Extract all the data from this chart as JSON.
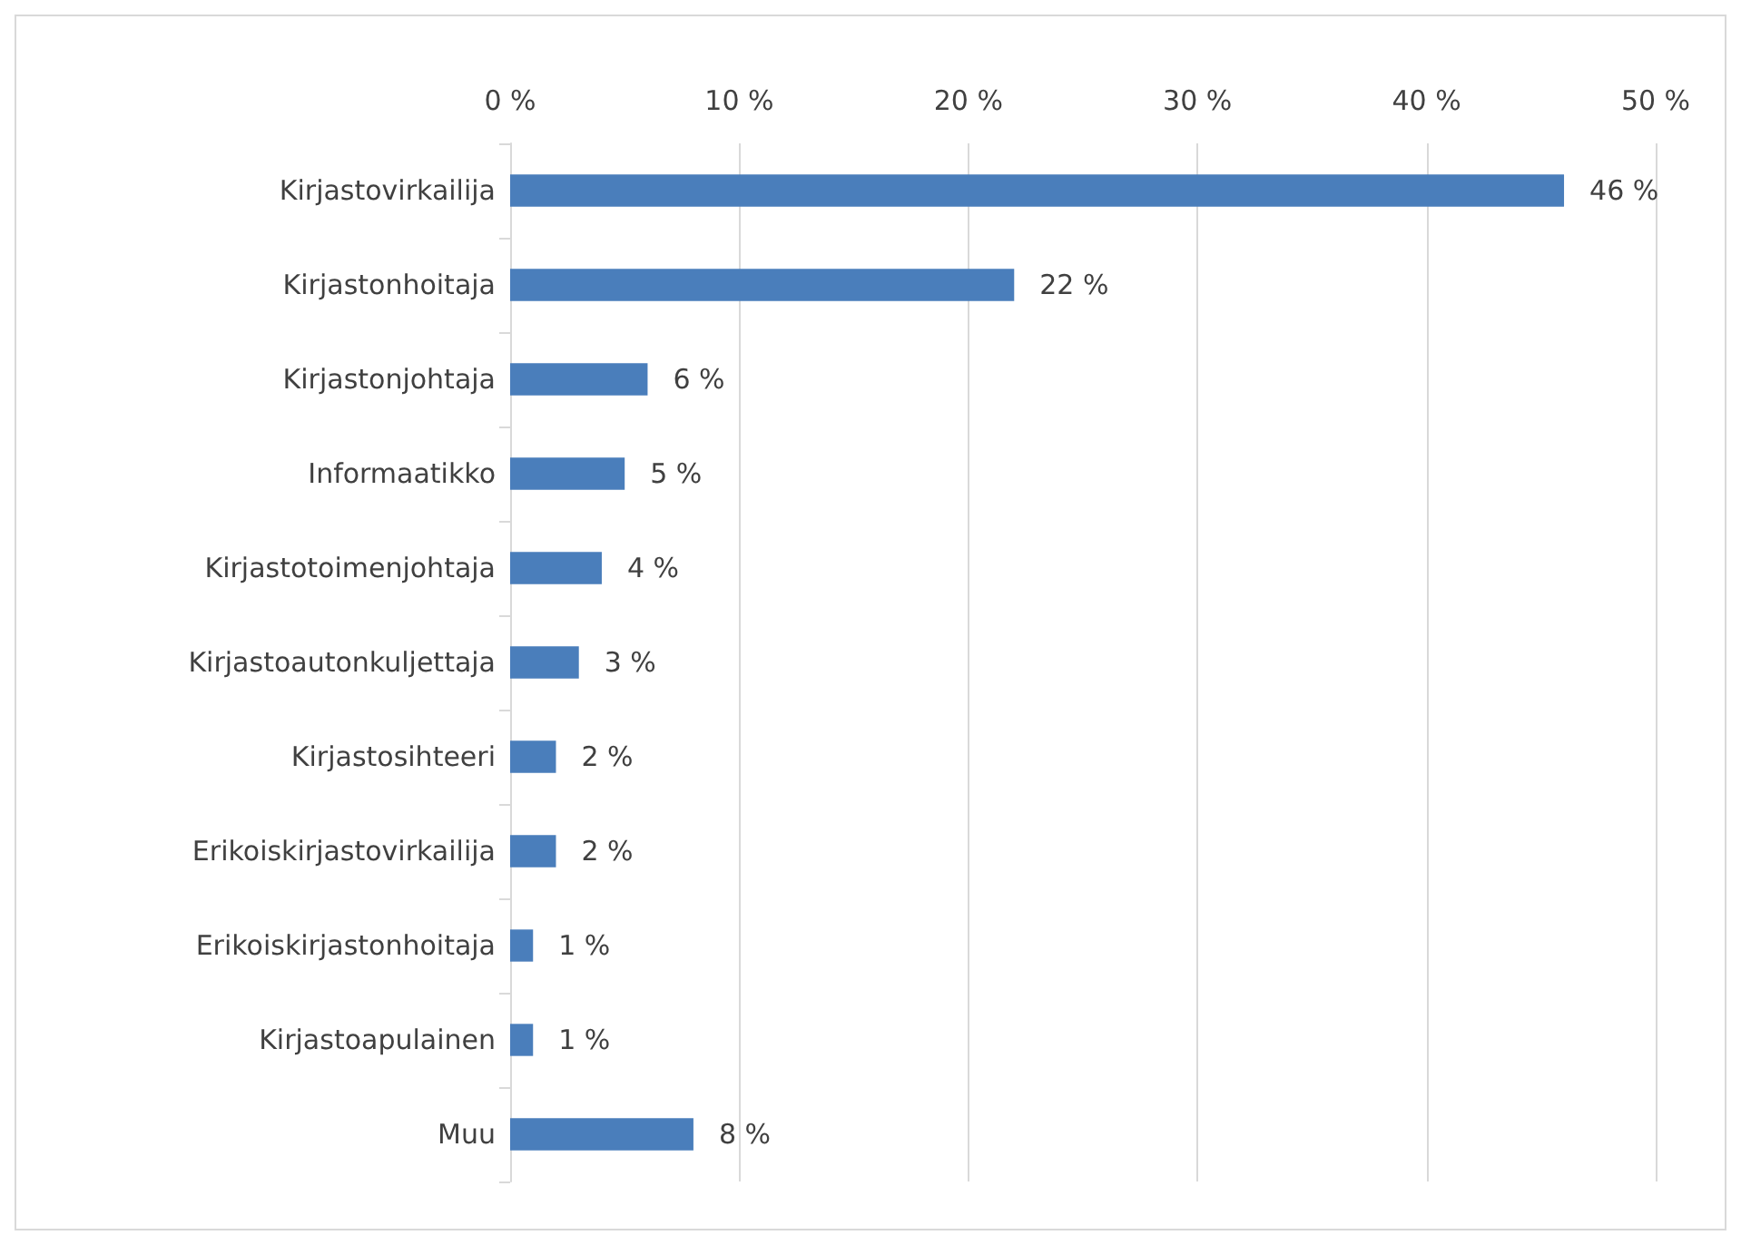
{
  "chart_data": {
    "type": "bar",
    "orientation": "horizontal",
    "categories": [
      "Kirjastovirkailija",
      "Kirjastonhoitaja",
      "Kirjastonjohtaja",
      "Informaatikko",
      "Kirjastotoimenjohtaja",
      "Kirjastoautonkuljettaja",
      "Kirjastosihteeri",
      "Erikoiskirjastovirkailija",
      "Erikoiskirjastonhoitaja",
      "Kirjastoapulainen",
      "Muu"
    ],
    "values": [
      46,
      22,
      6,
      5,
      4,
      3,
      2,
      2,
      1,
      1,
      8
    ],
    "value_labels": [
      "46 %",
      "22 %",
      "6 %",
      "5 %",
      "4 %",
      "3 %",
      "2 %",
      "2 %",
      "1 %",
      "1 %",
      "8 %"
    ],
    "color": "#4a7ebb",
    "xlim": [
      0,
      50
    ],
    "xticks": [
      {
        "value": 0,
        "label": "0 %"
      },
      {
        "value": 10,
        "label": "10 %"
      },
      {
        "value": 20,
        "label": "20 %"
      },
      {
        "value": 30,
        "label": "30 %"
      },
      {
        "value": 40,
        "label": "40 %"
      },
      {
        "value": 50,
        "label": "50 %"
      }
    ],
    "grid": "x"
  }
}
